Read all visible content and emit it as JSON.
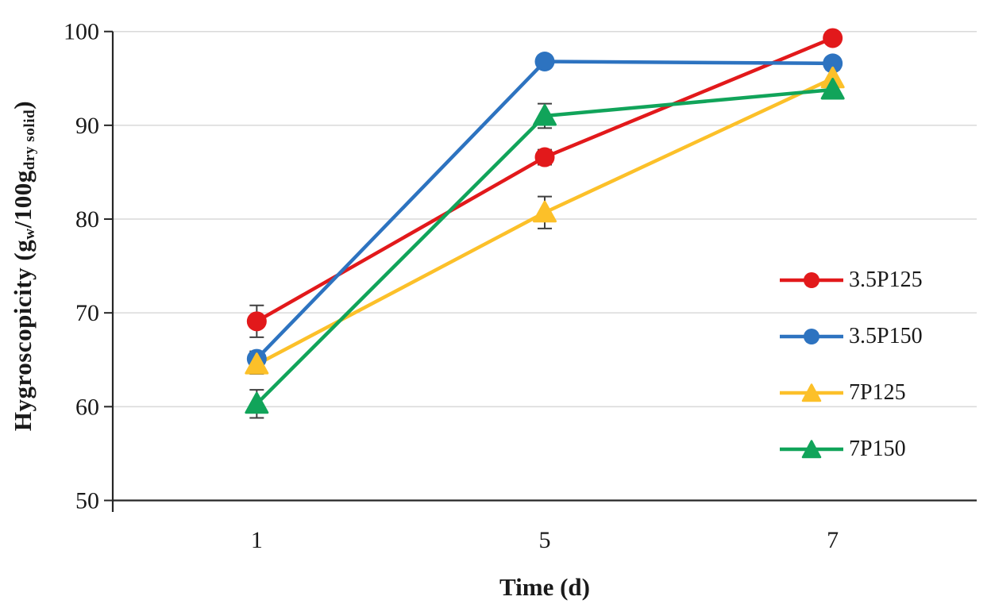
{
  "page": {
    "background": "#ffffff",
    "text_color": "#1a1a1a"
  },
  "chart_data": {
    "type": "line",
    "title": "",
    "xlabel": "Time (d)",
    "ylabel": "Hygroscopicity (gw/100gdry solid)",
    "ylabel_parts": [
      {
        "text": "Hygroscopicity (g",
        "sub": false
      },
      {
        "text": "w",
        "sub": true
      },
      {
        "text": "/100g",
        "sub": false
      },
      {
        "text": "dry solid",
        "sub": true
      },
      {
        "text": ")",
        "sub": false
      }
    ],
    "categories": [
      "1",
      "5",
      "7"
    ],
    "ylim": [
      50,
      100
    ],
    "yticks": [
      50,
      60,
      70,
      80,
      90,
      100
    ],
    "grid": "horizontal",
    "gridline_color": "#d9d9d9",
    "axis_color": "#262626",
    "tick_label_color": "#1a1a1a",
    "error_bar_color": "#3f3f3f",
    "legend_position": "right-middle",
    "series": [
      {
        "name": "3.5P125",
        "marker": "circle",
        "color": "#e2191b",
        "values": [
          69.1,
          86.6,
          99.3
        ],
        "errors": [
          1.7,
          0.8,
          0.6
        ]
      },
      {
        "name": "3.5P150",
        "marker": "circle",
        "color": "#2d73c0",
        "values": [
          65.1,
          96.8,
          96.6
        ],
        "errors": [
          0.8,
          0.5,
          0.6
        ]
      },
      {
        "name": "7P125",
        "marker": "triangle",
        "color": "#fcc029",
        "values": [
          64.5,
          80.7,
          95.0
        ],
        "errors": [
          1.0,
          1.7,
          0.9
        ]
      },
      {
        "name": "7P150",
        "marker": "triangle",
        "color": "#11a45a",
        "values": [
          60.3,
          91.0,
          93.8
        ],
        "errors": [
          1.5,
          1.3,
          0.7
        ]
      }
    ]
  }
}
